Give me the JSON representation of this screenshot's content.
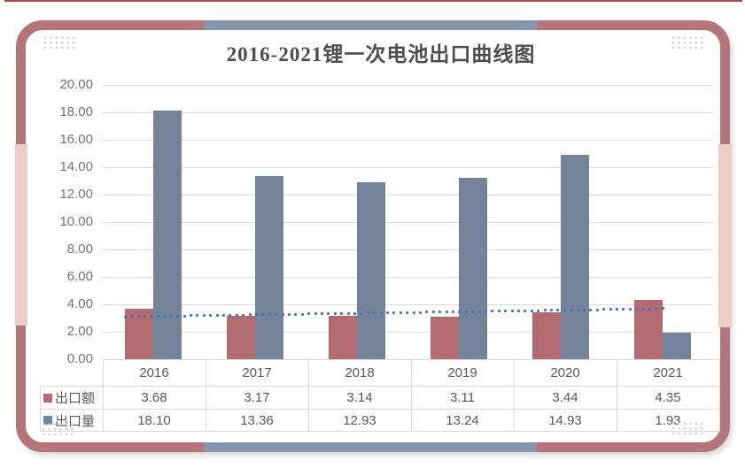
{
  "chart_data": {
    "type": "bar",
    "title": "2016-2021锂一次电池出口曲线图",
    "categories": [
      "2016",
      "2017",
      "2018",
      "2019",
      "2020",
      "2021"
    ],
    "series": [
      {
        "name": "出口额",
        "color": "#b26b6f",
        "values": [
          3.68,
          3.17,
          3.14,
          3.11,
          3.44,
          4.35
        ]
      },
      {
        "name": "出口量",
        "color": "#75839a",
        "values": [
          18.1,
          13.36,
          12.93,
          13.24,
          14.93,
          1.93
        ]
      }
    ],
    "trendline": {
      "for_series": "出口额",
      "style": "dotted",
      "color": "#4472c4",
      "start_value": 3.19,
      "end_value": 3.78
    },
    "ylim": [
      0,
      20
    ],
    "ytick_step": 2,
    "ytick_decimals": 2,
    "grid": true,
    "legend_position": "data-table-left",
    "data_table_shown": true
  },
  "decorations": {
    "frame_color": "#b4757a",
    "frame_accent_side_color": "#edcdc9",
    "frame_accent_topbottom_color": "#8496aa",
    "top_line_color": "#a04a4e"
  }
}
